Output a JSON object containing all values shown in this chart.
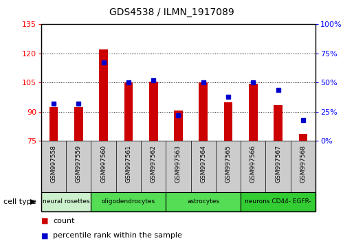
{
  "title": "GDS4538 / ILMN_1917089",
  "samples": [
    "GSM997558",
    "GSM997559",
    "GSM997560",
    "GSM997561",
    "GSM997562",
    "GSM997563",
    "GSM997564",
    "GSM997565",
    "GSM997566",
    "GSM997567",
    "GSM997568"
  ],
  "count_values": [
    92.5,
    92.5,
    122.0,
    105.0,
    105.5,
    90.5,
    105.0,
    95.0,
    104.5,
    93.5,
    78.5
  ],
  "percentile_values": [
    32,
    32,
    67,
    50,
    52,
    22,
    50,
    38,
    50,
    44,
    18
  ],
  "ylim_left": [
    75,
    135
  ],
  "ylim_right": [
    0,
    100
  ],
  "yticks_left": [
    75,
    90,
    105,
    120,
    135
  ],
  "yticks_right": [
    0,
    25,
    50,
    75,
    100
  ],
  "bar_color": "#cc0000",
  "dot_color": "#0000cc",
  "bar_bottom": 75,
  "cell_types": [
    {
      "label": "neural rosettes",
      "start": 0,
      "end": 2,
      "color": "#ccf0cc"
    },
    {
      "label": "oligodendrocytes",
      "start": 2,
      "end": 5,
      "color": "#55dd55"
    },
    {
      "label": "astrocytes",
      "start": 5,
      "end": 8,
      "color": "#55dd55"
    },
    {
      "label": "neurons CD44- EGFR-",
      "start": 8,
      "end": 11,
      "color": "#33cc33"
    }
  ],
  "cell_type_label": "cell type",
  "legend_count_label": "count",
  "legend_pct_label": "percentile rank within the sample",
  "xticklabel_bg": "#cccccc",
  "bar_width": 0.35
}
